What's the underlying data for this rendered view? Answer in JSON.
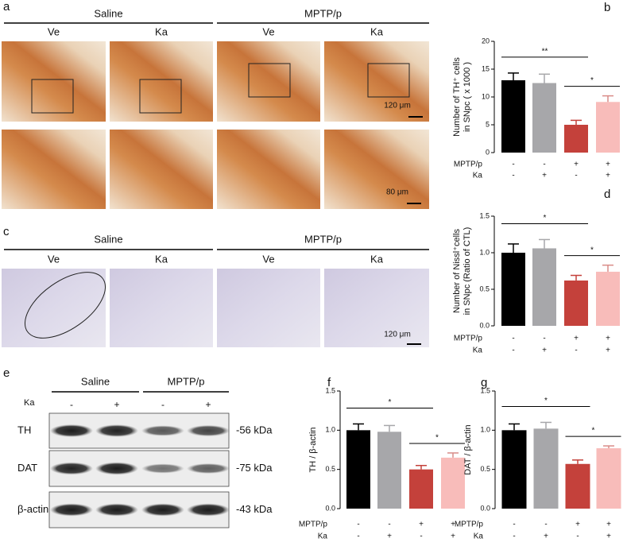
{
  "panels": {
    "a": {
      "letter": "a",
      "groups": [
        "Saline",
        "MPTP/p"
      ],
      "columns": [
        "Ve",
        "Ka",
        "Ve",
        "Ka"
      ],
      "scale_top": "120 μm",
      "scale_bottom": "80 μm"
    },
    "c": {
      "letter": "c",
      "groups": [
        "Saline",
        "MPTP/p"
      ],
      "columns": [
        "Ve",
        "Ka",
        "Ve",
        "Ka"
      ],
      "scale": "120 μm"
    },
    "e": {
      "letter": "e",
      "groups": [
        "Saline",
        "MPTP/p"
      ],
      "treatment": "Ka",
      "signs": [
        "-",
        "+",
        "-",
        "+"
      ],
      "bands": [
        "TH",
        "DAT",
        "β-actin"
      ],
      "sizes": [
        "-56 kDa",
        "-75 kDa",
        "-43 kDa"
      ]
    }
  },
  "chart_data": [
    {
      "type": "bar",
      "panel": "b",
      "ylabel": [
        "Number of TH⁺ cells",
        "in SNpc ( x 1000 )"
      ],
      "categories": [
        null,
        null,
        null,
        null
      ],
      "values": [
        13.0,
        12.5,
        5.0,
        9.1
      ],
      "errors": [
        1.3,
        1.6,
        0.8,
        1.1
      ],
      "colors": [
        "#000000",
        "#a7a7aa",
        "#c4413b",
        "#f8bcba"
      ],
      "ylim": [
        0,
        20
      ],
      "yticks": [
        0,
        5,
        10,
        15,
        20
      ],
      "annotations": [
        "**",
        "*"
      ],
      "treatments": [
        {
          "name": "MPTP/p",
          "signs": [
            "-",
            "-",
            "+",
            "+"
          ]
        },
        {
          "name": "Ka",
          "signs": [
            "-",
            "+",
            "-",
            "+"
          ]
        }
      ]
    },
    {
      "type": "bar",
      "panel": "d",
      "ylabel": [
        "Number of Nissl⁺cells",
        "in SNpc (Ratio of CTL)"
      ],
      "categories": [
        null,
        null,
        null,
        null
      ],
      "values": [
        1.0,
        1.06,
        0.62,
        0.74
      ],
      "errors": [
        0.12,
        0.12,
        0.07,
        0.09
      ],
      "colors": [
        "#000000",
        "#a7a7aa",
        "#c4413b",
        "#f8bcba"
      ],
      "ylim": [
        0,
        1.5
      ],
      "yticks": [
        {
          "value": 0,
          "label": "0.0"
        },
        {
          "value": 0.5,
          "label": "0.5"
        },
        {
          "value": 1,
          "label": "1.0"
        },
        {
          "value": 1.5,
          "label": "1.5"
        }
      ],
      "annotations": [
        "*",
        "*"
      ],
      "treatments": [
        {
          "name": "MPTP/p",
          "signs": [
            "-",
            "-",
            "+",
            "+"
          ]
        },
        {
          "name": "Ka",
          "signs": [
            "-",
            "+",
            "-",
            "+"
          ]
        }
      ]
    },
    {
      "type": "bar",
      "panel": "f",
      "ylabel": [
        "TH / β-actin"
      ],
      "categories": [
        null,
        null,
        null,
        null
      ],
      "values": [
        1.0,
        0.98,
        0.5,
        0.65
      ],
      "errors": [
        0.08,
        0.08,
        0.05,
        0.06
      ],
      "colors": [
        "#000000",
        "#a7a7aa",
        "#c4413b",
        "#f8bcba"
      ],
      "ylim": [
        0,
        1.5
      ],
      "yticks": [
        {
          "value": 0,
          "label": "0.0"
        },
        {
          "value": 0.5,
          "label": "0.5"
        },
        {
          "value": 1,
          "label": "1.0"
        },
        {
          "value": 1.5,
          "label": "1.5"
        }
      ],
      "annotations": [
        "*",
        "*"
      ],
      "treatments": [
        {
          "name": "MPTP/p",
          "signs": [
            "-",
            "-",
            "+",
            "+"
          ]
        },
        {
          "name": "Ka",
          "signs": [
            "-",
            "+",
            "-",
            "+"
          ]
        }
      ]
    },
    {
      "type": "bar",
      "panel": "g",
      "ylabel": [
        "DAT / β-actin"
      ],
      "categories": [
        null,
        null,
        null,
        null
      ],
      "values": [
        1.0,
        1.02,
        0.57,
        0.77
      ],
      "errors": [
        0.08,
        0.08,
        0.05,
        0.03
      ],
      "colors": [
        "#000000",
        "#a7a7aa",
        "#c4413b",
        "#f8bcba"
      ],
      "ylim": [
        0,
        1.5
      ],
      "yticks": [
        {
          "value": 0,
          "label": "0.0"
        },
        {
          "value": 0.5,
          "label": "0.5"
        },
        {
          "value": 1,
          "label": "1.0"
        },
        {
          "value": 1.5,
          "label": "1.5"
        }
      ],
      "annotations": [
        "*",
        "*"
      ],
      "treatments": [
        {
          "name": "MPTP/p",
          "signs": [
            "-",
            "-",
            "+",
            "+"
          ]
        },
        {
          "name": "Ka",
          "signs": [
            "-",
            "+",
            "-",
            "+"
          ]
        }
      ]
    }
  ]
}
